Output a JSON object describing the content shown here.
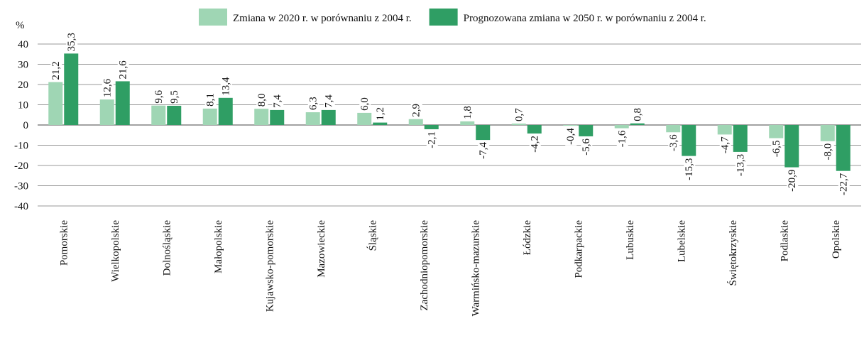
{
  "chart_data": {
    "type": "bar",
    "y_unit": "%",
    "categories": [
      "Pomorskie",
      "Wielkopolskie",
      "Dolnośląskie",
      "Małopolskie",
      "Kujawsko-pomorskie",
      "Mazowieckie",
      "Śląskie",
      "Zachodniopomorskie",
      "Warmińsko-mazurskie",
      "Łódzkie",
      "Podkarpackie",
      "Lubuskie",
      "Lubelskie",
      "Świętokrzyskie",
      "Podlaskie",
      "Opolskie"
    ],
    "series": [
      {
        "name": "Zmiana  w 2020 r. w porównaniu z 2004 r.",
        "color": "#9fd6b4",
        "values": [
          21.2,
          12.6,
          9.6,
          8.1,
          8.0,
          6.3,
          6.0,
          2.9,
          1.8,
          0.7,
          -0.4,
          -1.6,
          -3.6,
          -4.7,
          -6.5,
          -8.0
        ],
        "value_labels": [
          "21,2",
          "12,6",
          "9,6",
          "8,1",
          "8,0",
          "6,3",
          "6,0",
          "2,9",
          "1,8",
          "0,7",
          "-0,4",
          "-1,6",
          "-3,6",
          "-4,7",
          "-6,5",
          "-8,0"
        ]
      },
      {
        "name": "Prognozowana zmiana  w 2050 r. w porównaniu z 2004 r.",
        "color": "#2f9e64",
        "values": [
          35.3,
          21.6,
          9.5,
          13.4,
          7.4,
          7.4,
          1.2,
          -2.1,
          -7.4,
          -4.2,
          -5.6,
          0.8,
          -15.3,
          -13.3,
          -20.9,
          -22.7
        ],
        "value_labels": [
          "35,3",
          "21,6",
          "9,5",
          "13,4",
          "7,4",
          "7,4",
          "1,2",
          "-2,1",
          "-7,4",
          "-4,2",
          "-5,6",
          "0,8",
          "-15,3",
          "-13,3",
          "-20,9",
          "-22,7"
        ]
      }
    ],
    "ylim": [
      -40,
      40
    ],
    "yticks": [
      -40,
      -30,
      -20,
      -10,
      0,
      10,
      20,
      30,
      40
    ],
    "grid": true
  }
}
